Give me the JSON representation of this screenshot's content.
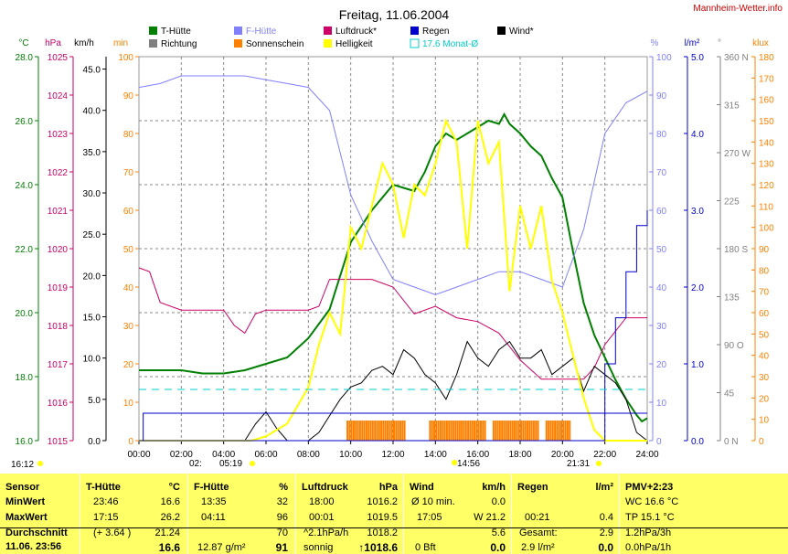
{
  "title": "Freitag, 11.06.2004",
  "site": "Mannheim-Wetter.info",
  "colors": {
    "t_huette": "#008000",
    "richtung": "#808080",
    "f_huette": "#8080ff",
    "sonnenschein": "#ff8000",
    "luftdruck": "#cc0066",
    "helligkeit": "#ffff00",
    "regen": "#0000cc",
    "monat": "#00cccc",
    "wind": "#000000"
  },
  "legend": {
    "t_huette": "T-Hütte",
    "richtung": "Richtung",
    "f_huette": "F-Hütte",
    "sonnenschein": "Sonnenschein",
    "luftdruck": "Luftdruck*",
    "helligkeit": "Helligkeit",
    "regen": "Regen",
    "monat": "17.6 Monat-Ø",
    "wind": "Wind*"
  },
  "axes": {
    "temp": {
      "unit": "°C",
      "ticks": [
        "28.0",
        "26.0",
        "24.0",
        "22.0",
        "20.0",
        "18.0",
        "16.0"
      ]
    },
    "pressure": {
      "unit": "hPa",
      "ticks": [
        "1025",
        "1024",
        "1023",
        "1022",
        "1021",
        "1020",
        "1019",
        "1018",
        "1017",
        "1016",
        "1015"
      ]
    },
    "wind": {
      "unit": "km/h",
      "ticks": [
        "45.0",
        "40.0",
        "35.0",
        "30.0",
        "25.0",
        "20.0",
        "15.0",
        "10.0",
        "5.0",
        "0.0"
      ]
    },
    "sun": {
      "unit": "min",
      "ticks": [
        "100",
        "90",
        "80",
        "70",
        "60",
        "50",
        "40",
        "30",
        "20",
        "10",
        "0"
      ]
    },
    "humidity": {
      "unit": "%",
      "ticks": [
        "100",
        "90",
        "80",
        "70",
        "60",
        "50",
        "40",
        "30",
        "20",
        "10",
        "0"
      ]
    },
    "rain": {
      "unit": "l/m²",
      "ticks": [
        "5.0",
        "4.0",
        "3.0",
        "2.0",
        "1.0",
        "0.0"
      ]
    },
    "direction": {
      "unit": "°",
      "ticks": [
        "360 N",
        "315",
        "270 W",
        "225",
        "180 S",
        "135",
        "90 O",
        "45",
        "0 N"
      ]
    },
    "lux": {
      "unit": "klux",
      "ticks": [
        "180",
        "170",
        "160",
        "150",
        "140",
        "130",
        "120",
        "110",
        "100",
        "90",
        "80",
        "70",
        "60",
        "50",
        "40",
        "30",
        "20",
        "10",
        "0"
      ]
    },
    "time_ticks": [
      "00:00",
      "02:00",
      "04:00",
      "06:00",
      "08:00",
      "10:00",
      "12:00",
      "14:00",
      "16:00",
      "18:00",
      "20:00",
      "22:00",
      "24:00"
    ]
  },
  "sun_events": {
    "set_prev": "16:12",
    "rise": "05:19",
    "rise_prefix": "02:",
    "noon": "14:56",
    "set": "21:31"
  },
  "chart_data": {
    "type": "line",
    "x_unit": "hours",
    "xlim": [
      0,
      24
    ],
    "series": [
      {
        "name": "T-Hütte",
        "unit": "°C",
        "x": [
          0,
          1,
          2,
          3,
          4,
          5,
          6,
          7,
          8,
          9,
          10,
          11,
          12,
          13,
          13.5,
          14,
          14.5,
          15,
          15.5,
          16,
          16.5,
          17,
          17.25,
          17.5,
          18,
          18.5,
          19,
          19.5,
          20,
          20.5,
          21,
          21.5,
          22,
          22.5,
          23,
          23.5,
          23.75,
          24
        ],
        "y": [
          18.2,
          18.2,
          18.2,
          18.1,
          18.1,
          18.2,
          18.4,
          18.6,
          19.2,
          20.1,
          22.2,
          23.2,
          24.0,
          23.8,
          24.4,
          25.2,
          25.6,
          25.4,
          25.6,
          25.8,
          26.0,
          25.9,
          26.2,
          25.9,
          25.6,
          25.2,
          24.9,
          24.2,
          23.6,
          21.9,
          20.3,
          19.3,
          18.6,
          17.9,
          17.3,
          16.8,
          16.6,
          16.7
        ]
      },
      {
        "name": "F-Hütte",
        "unit": "%",
        "x": [
          0,
          1,
          2,
          3,
          4,
          5,
          6,
          7,
          8,
          9,
          10,
          11,
          12,
          13,
          14,
          15,
          16,
          17,
          18,
          19,
          20,
          21,
          22,
          23,
          24
        ],
        "y": [
          92,
          93,
          95,
          95,
          95,
          95,
          94,
          93,
          92,
          86,
          64,
          52,
          42,
          40,
          38,
          40,
          42,
          44,
          44,
          42,
          40,
          55,
          80,
          88,
          91
        ]
      },
      {
        "name": "Luftdruck*",
        "unit": "hPa",
        "x": [
          0,
          0.5,
          1,
          2,
          3,
          4,
          4.5,
          5,
          5.5,
          6,
          7,
          8,
          8.5,
          9,
          10,
          11,
          12,
          13,
          14,
          15,
          16,
          17,
          18,
          19,
          20,
          21,
          21.5,
          22,
          23,
          24
        ],
        "y": [
          1019.5,
          1019.4,
          1018.6,
          1018.4,
          1018.4,
          1018.4,
          1018.0,
          1017.8,
          1018.3,
          1018.4,
          1018.4,
          1018.4,
          1018.5,
          1019.2,
          1019.2,
          1019.2,
          1019.0,
          1018.3,
          1018.5,
          1018.2,
          1018.1,
          1017.8,
          1017.1,
          1016.6,
          1016.6,
          1016.6,
          1016.9,
          1017.5,
          1018.2,
          1018.2
        ]
      },
      {
        "name": "Wind*",
        "unit": "km/h",
        "x": [
          0,
          5,
          5.5,
          6,
          6.5,
          7,
          8,
          8.5,
          9,
          9.5,
          10,
          10.5,
          11,
          11.5,
          12,
          12.5,
          13,
          13.5,
          14,
          14.5,
          15,
          15.5,
          16,
          16.5,
          17,
          17.5,
          18,
          18.5,
          19,
          19.5,
          20,
          20.5,
          21,
          21.5,
          22,
          22.5,
          23,
          23.5,
          24
        ],
        "y": [
          0,
          0,
          2,
          3.5,
          1.5,
          0,
          0,
          1,
          3,
          5,
          6.5,
          7,
          8.5,
          9,
          8,
          11,
          10,
          8,
          7,
          5,
          8,
          12,
          10,
          9,
          11,
          12,
          10,
          10,
          11,
          8,
          9,
          10,
          6,
          9,
          8,
          7,
          5,
          1,
          0
        ]
      },
      {
        "name": "Helligkeit",
        "unit": "klux",
        "x": [
          0,
          5.3,
          6,
          7,
          8,
          8.5,
          9,
          9.5,
          10,
          10.5,
          11,
          11.5,
          12,
          12.5,
          13,
          13.5,
          14,
          14.5,
          15,
          15.5,
          16,
          16.5,
          17,
          17.5,
          18,
          18.5,
          19,
          19.5,
          20,
          20.5,
          21,
          21.5,
          22,
          24
        ],
        "y": [
          0,
          0,
          2,
          8,
          25,
          45,
          60,
          50,
          100,
          90,
          110,
          130,
          120,
          95,
          120,
          115,
          130,
          150,
          140,
          90,
          150,
          130,
          140,
          70,
          110,
          90,
          110,
          75,
          60,
          40,
          20,
          5,
          0,
          0
        ]
      },
      {
        "name": "Regen",
        "unit": "l/m²",
        "x": [
          0,
          21.5,
          22,
          22.5,
          23,
          23.5,
          24
        ],
        "y": [
          0,
          0,
          1.0,
          1.6,
          2.2,
          2.8,
          3.0
        ]
      },
      {
        "name": "17.6 Monat-Ø",
        "unit": "°C",
        "x": [
          0,
          24
        ],
        "y": [
          17.6,
          17.6
        ]
      }
    ],
    "sonnenschein_hours": [
      [
        9.8,
        20.4
      ]
    ],
    "title": "Freitag, 11.06.2004"
  },
  "stats": {
    "sensor": {
      "title": "Sensor",
      "rows": [
        "MinWert",
        "MaxWert",
        "Durchschnitt"
      ],
      "footer": "11.06. 23:56"
    },
    "t_huette": {
      "title": "T-Hütte",
      "unit": "°C",
      "rows": [
        [
          "23:46",
          "16.6"
        ],
        [
          "17:15",
          "26.2"
        ],
        [
          "(+ 3.64 )",
          "21.24"
        ]
      ],
      "footer_value": "16.6"
    },
    "f_huette": {
      "title": "F-Hütte",
      "unit": "%",
      "rows": [
        [
          "13:35",
          "32"
        ],
        [
          "04:11",
          "96"
        ],
        [
          "",
          "70"
        ]
      ],
      "footer_label": "12.87 g/m²",
      "footer_value": "91"
    },
    "luftdruck": {
      "title": "Luftdruck",
      "unit": "hPa",
      "rows": [
        [
          "18:00",
          "1016.2"
        ],
        [
          "00:01",
          "1019.5"
        ],
        [
          "^2.1hPa/h",
          "1018.2"
        ]
      ],
      "footer_label": "sonnig",
      "footer_value": "↑1018.6"
    },
    "wind": {
      "title": "Wind",
      "unit": "km/h",
      "rows": [
        [
          "Ø 10 min.",
          "0.0"
        ],
        [
          "17:05",
          "W 21.2"
        ],
        [
          "",
          "5.6"
        ]
      ],
      "footer_label": "0 Bft",
      "footer_value": "0.0"
    },
    "regen": {
      "title": "Regen",
      "unit": "l/m²",
      "rows": [
        [
          "",
          "",
          ""
        ],
        [
          "00:21",
          "0.4"
        ],
        [
          "Gesamt:",
          "2.9"
        ]
      ],
      "footer_label": "2.9 l/m²",
      "footer_value": "0.0"
    },
    "pmv": {
      "title": "PMV+2:23",
      "rows": [
        "WC 16.6 °C",
        "TP 15.1 °C",
        "1.2hPa/3h"
      ],
      "footer": "0.0hPa/1h"
    }
  }
}
